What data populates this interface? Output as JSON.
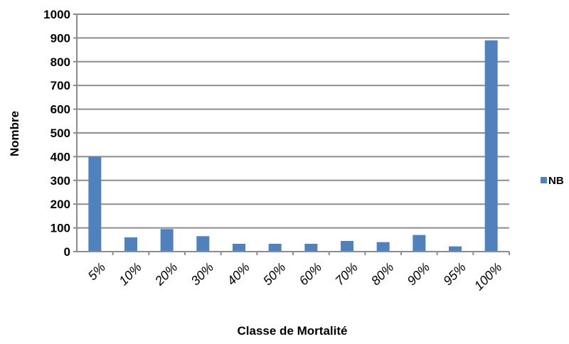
{
  "chart_data": {
    "type": "bar",
    "title": "",
    "xlabel": "Classe  de Mortalité",
    "ylabel": "Nombre",
    "ylim": [
      0,
      1000
    ],
    "yticks": [
      "0",
      "100",
      "200",
      "300",
      "400",
      "500",
      "600",
      "700",
      "800",
      "900",
      "1000"
    ],
    "categories": [
      "5%",
      "10%",
      "20%",
      "30%",
      "40%",
      "50%",
      "60%",
      "70%",
      "80%",
      "90%",
      "95%",
      "100%"
    ],
    "series": [
      {
        "name": "NB",
        "color": "#4f81bd",
        "values": [
          400,
          60,
          95,
          65,
          33,
          33,
          33,
          45,
          40,
          70,
          22,
          890
        ]
      }
    ],
    "grid": true,
    "gridline_color": "#8c8c8c",
    "legend_position": "right"
  }
}
